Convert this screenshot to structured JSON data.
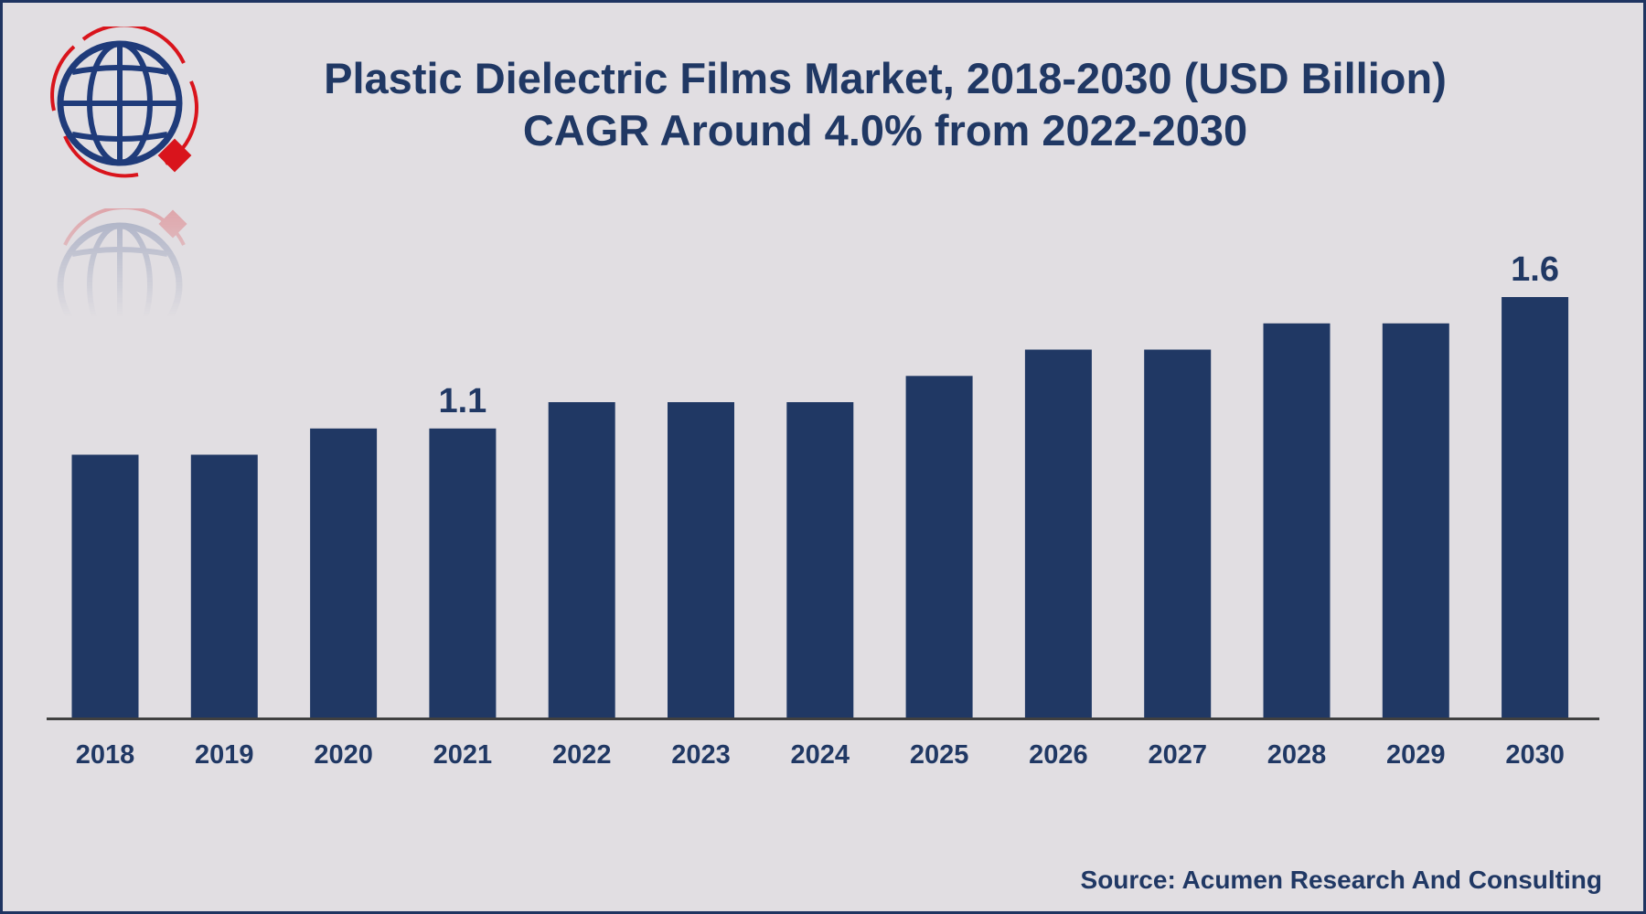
{
  "title_line1": "Plastic Dielectric Films Market, 2018-2030 (USD Billion)",
  "title_line2": "CAGR Around 4.0% from 2022-2030",
  "source": "Source: Acumen Research And Consulting",
  "colors": {
    "bar": "#203864",
    "background": "#e1dee2",
    "text": "#203864",
    "accent": "#d9141c"
  },
  "logo_icon": "globe-icon",
  "chart_data": {
    "type": "bar",
    "title": "Plastic Dielectric Films Market, 2018-2030 (USD Billion)",
    "subtitle": "CAGR Around 4.0% from 2022-2030",
    "xlabel": "",
    "ylabel": "",
    "categories": [
      "2018",
      "2019",
      "2020",
      "2021",
      "2022",
      "2023",
      "2024",
      "2025",
      "2026",
      "2027",
      "2028",
      "2029",
      "2030"
    ],
    "values": [
      1.0,
      1.0,
      1.1,
      1.1,
      1.2,
      1.2,
      1.2,
      1.3,
      1.4,
      1.4,
      1.5,
      1.5,
      1.6
    ],
    "data_labels": [
      {
        "category": "2021",
        "text": "1.1"
      },
      {
        "category": "2030",
        "text": "1.6"
      }
    ],
    "ylim": [
      0,
      1.6
    ],
    "grid": false,
    "legend": "none"
  }
}
